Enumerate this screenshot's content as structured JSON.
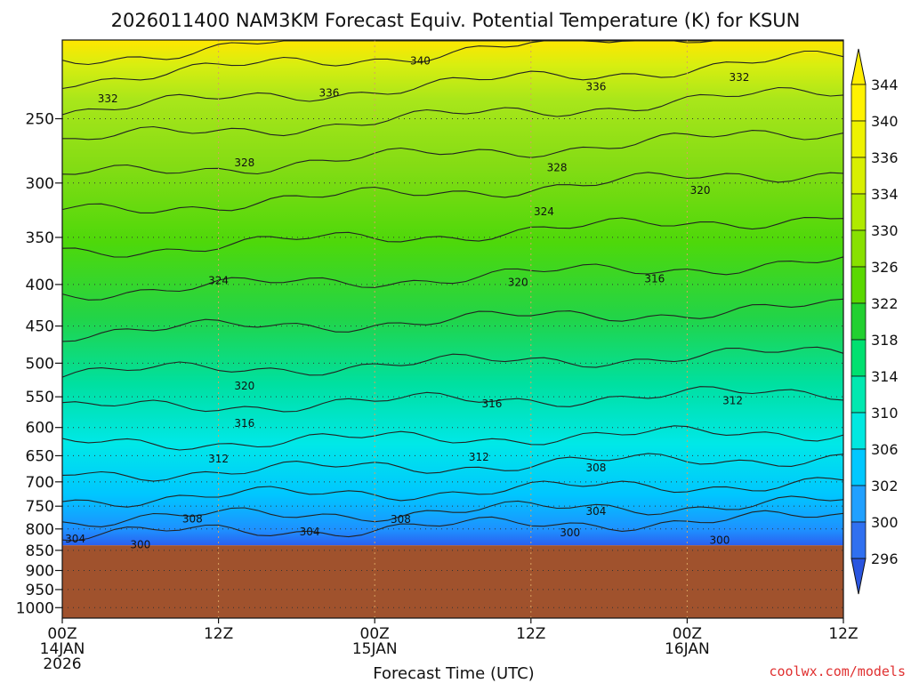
{
  "chart_data": {
    "type": "contour",
    "title": "2026011400 NAM3KM Forecast Equiv. Potential Temperature (K) for KSUN",
    "xlabel": "Forecast Time (UTC)",
    "ylabel": "",
    "credit": "coolwx.com/models",
    "x_ticks": [
      {
        "hour": 0,
        "line1": "00Z",
        "line2": "14JAN",
        "line3": "2026"
      },
      {
        "hour": 12,
        "line1": "12Z",
        "line2": "",
        "line3": ""
      },
      {
        "hour": 24,
        "line1": "00Z",
        "line2": "15JAN",
        "line3": ""
      },
      {
        "hour": 36,
        "line1": "12Z",
        "line2": "",
        "line3": ""
      },
      {
        "hour": 48,
        "line1": "00Z",
        "line2": "16JAN",
        "line3": ""
      },
      {
        "hour": 60,
        "line1": "12Z",
        "line2": "",
        "line3": ""
      }
    ],
    "xlim": [
      0,
      60
    ],
    "ylim": [
      1030,
      200
    ],
    "y_scale": "log-pressure",
    "y_ticks": [
      250,
      300,
      350,
      400,
      450,
      500,
      550,
      600,
      650,
      700,
      750,
      800,
      850,
      900,
      950,
      1000
    ],
    "surface_pressure_hpa": 838,
    "colorbar": {
      "labels": [
        "344",
        "340",
        "336",
        "334",
        "330",
        "326",
        "322",
        "318",
        "314",
        "310",
        "306",
        "302",
        "300",
        "296"
      ],
      "colors": [
        "#ffee00",
        "#fff200",
        "#eef200",
        "#d8ef00",
        "#b0ea00",
        "#88e000",
        "#5ad800",
        "#22d030",
        "#00e070",
        "#00e8b0",
        "#00e8e0",
        "#00c8ff",
        "#20a0ff",
        "#3070f0",
        "#2a55e0"
      ]
    },
    "contour_labels": [
      {
        "value": "340",
        "hour": 27.5,
        "pressure": 212
      },
      {
        "value": "336",
        "hour": 20.5,
        "pressure": 232
      },
      {
        "value": "336",
        "hour": 41.0,
        "pressure": 228
      },
      {
        "value": "332",
        "hour": 3.5,
        "pressure": 236
      },
      {
        "value": "332",
        "hour": 52.0,
        "pressure": 222
      },
      {
        "value": "328",
        "hour": 14.0,
        "pressure": 283
      },
      {
        "value": "328",
        "hour": 38.0,
        "pressure": 287
      },
      {
        "value": "324",
        "hour": 12.0,
        "pressure": 395
      },
      {
        "value": "324",
        "hour": 37.0,
        "pressure": 325
      },
      {
        "value": "320",
        "hour": 35.0,
        "pressure": 397
      },
      {
        "value": "320",
        "hour": 49.0,
        "pressure": 306
      },
      {
        "value": "320",
        "hour": 14.0,
        "pressure": 533
      },
      {
        "value": "316",
        "hour": 45.5,
        "pressure": 393
      },
      {
        "value": "316",
        "hour": 33.0,
        "pressure": 560
      },
      {
        "value": "316",
        "hour": 14.0,
        "pressure": 592
      },
      {
        "value": "312",
        "hour": 12.0,
        "pressure": 655
      },
      {
        "value": "312",
        "hour": 32.0,
        "pressure": 652
      },
      {
        "value": "312",
        "hour": 51.5,
        "pressure": 555
      },
      {
        "value": "308",
        "hour": 10.0,
        "pressure": 777
      },
      {
        "value": "308",
        "hour": 26.0,
        "pressure": 778
      },
      {
        "value": "308",
        "hour": 41.0,
        "pressure": 672
      },
      {
        "value": "304",
        "hour": 1.0,
        "pressure": 822
      },
      {
        "value": "304",
        "hour": 19.0,
        "pressure": 805
      },
      {
        "value": "304",
        "hour": 41.0,
        "pressure": 760
      },
      {
        "value": "300",
        "hour": 6.0,
        "pressure": 835
      },
      {
        "value": "300",
        "hour": 39.0,
        "pressure": 808
      },
      {
        "value": "300",
        "hour": 50.5,
        "pressure": 825
      }
    ]
  }
}
